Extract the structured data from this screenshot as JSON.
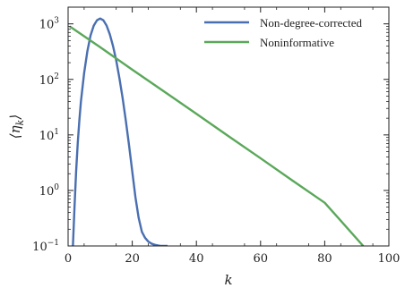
{
  "chart_data": {
    "type": "line",
    "xlabel": "k",
    "ylabel": "⟨η_k⟩",
    "xlim": [
      0,
      100
    ],
    "ylim": [
      0.1,
      2000
    ],
    "y_scale": "log",
    "x_ticks": [
      "0",
      "20",
      "40",
      "60",
      "80",
      "100"
    ],
    "y_ticks": [
      {
        "base": "10",
        "exp": "−1",
        "value": 0.1
      },
      {
        "base": "10",
        "exp": "0",
        "value": 1
      },
      {
        "base": "10",
        "exp": "1",
        "value": 10
      },
      {
        "base": "10",
        "exp": "2",
        "value": 100
      },
      {
        "base": "10",
        "exp": "3",
        "value": 1000
      }
    ],
    "legend_position": "top-right",
    "grid": false,
    "series": [
      {
        "name": "Non-degree-corrected",
        "color": "#4a6fb0",
        "x": [
          1.5,
          2,
          2.5,
          3,
          3.5,
          4,
          5,
          6,
          7,
          8,
          9,
          10,
          11,
          12,
          13,
          14,
          15,
          16,
          17,
          18,
          19,
          20,
          21,
          22,
          23,
          24,
          25,
          26,
          27,
          28,
          29,
          30,
          31
        ],
        "y": [
          0.1,
          0.5,
          2.2,
          7,
          18,
          40,
          130,
          320,
          620,
          930,
          1160,
          1250,
          1160,
          930,
          650,
          400,
          220,
          105,
          46,
          18,
          6.5,
          2.2,
          0.75,
          0.32,
          0.18,
          0.14,
          0.12,
          0.11,
          0.105,
          0.102,
          0.1,
          0.1,
          0.1
        ]
      },
      {
        "name": "Noninformative",
        "color": "#5aa85a",
        "x": [
          0.5,
          10,
          20,
          30,
          40,
          50,
          60,
          70,
          80,
          92
        ],
        "y": [
          900,
          380,
          150,
          60,
          24,
          9.5,
          3.8,
          1.5,
          0.6,
          0.1
        ]
      }
    ]
  }
}
